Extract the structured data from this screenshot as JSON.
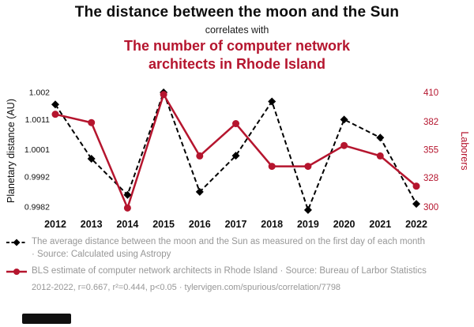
{
  "colors": {
    "accent": "#b5152e",
    "muted_text": "#979797",
    "black_series": "#000000"
  },
  "header": {
    "title": "The distance between the moon and the Sun",
    "connector": "correlates with",
    "red_title": "The number of computer network architects in Rhode Island"
  },
  "chart_data": {
    "type": "line",
    "categories": [
      "2012",
      "2013",
      "2014",
      "2015",
      "2016",
      "2017",
      "2018",
      "2019",
      "2020",
      "2021",
      "2022"
    ],
    "series": [
      {
        "name": "Planetary distance (AU)",
        "axis": "left",
        "color": "#000000",
        "style": "dashed",
        "marker": "diamond",
        "values": [
          1.0016,
          0.9998,
          0.9986,
          1.002,
          0.9987,
          0.9999,
          1.0017,
          0.9981,
          1.0011,
          1.0005,
          0.9983
        ]
      },
      {
        "name": "Laborers",
        "axis": "right",
        "color": "#b5152e",
        "style": "solid",
        "marker": "circle",
        "values": [
          389,
          381,
          299,
          408,
          349,
          380,
          339,
          339,
          359,
          349,
          320
        ]
      }
    ],
    "left_axis": {
      "label": "Planetary distance (AU)",
      "tick_labels": [
        "1.002",
        "1.0011",
        "1.0001",
        "0.9992",
        "0.9982"
      ],
      "min": 0.9982,
      "max": 1.002
    },
    "right_axis": {
      "label": "Laborers",
      "tick_labels": [
        "410",
        "382",
        "355",
        "328",
        "300"
      ],
      "min": 300,
      "max": 410
    },
    "grid": false,
    "legend_position": "below"
  },
  "legend": {
    "black_label": "The average distance between the moon and the Sun as measured on the first day of each month · Source: Calculated using Astropy",
    "red_label": "BLS estimate of computer network architects in Rhode Island · Source: Bureau of Larbor Statistics"
  },
  "footer": {
    "stats": "2012-2022, r=0.667, r²=0.444, p<0.05 · tylervigen.com/spurious/correlation/7798"
  }
}
